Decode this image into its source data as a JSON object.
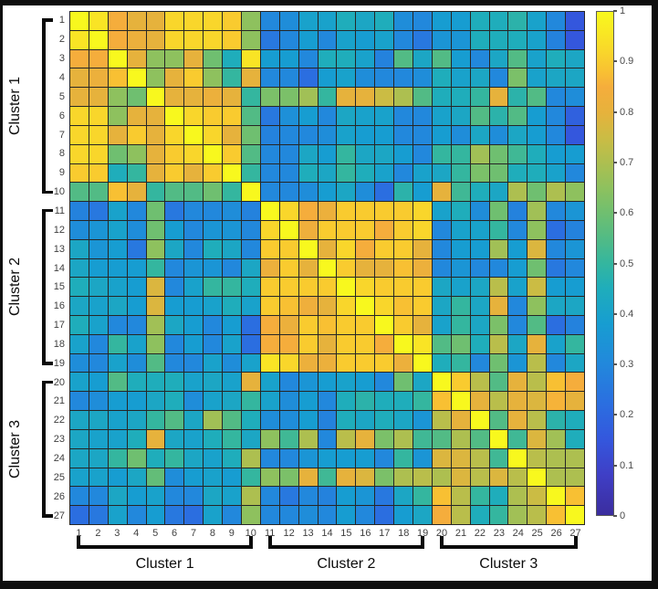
{
  "chart_data": {
    "type": "heatmap",
    "title": "",
    "rows": 27,
    "cols": 27,
    "row_labels": [
      "1",
      "2",
      "3",
      "4",
      "5",
      "6",
      "7",
      "8",
      "9",
      "10",
      "11",
      "12",
      "13",
      "14",
      "15",
      "16",
      "17",
      "18",
      "19",
      "20",
      "21",
      "22",
      "23",
      "24",
      "25",
      "26",
      "27"
    ],
    "col_labels": [
      "1",
      "2",
      "3",
      "4",
      "5",
      "6",
      "7",
      "8",
      "9",
      "10",
      "11",
      "12",
      "13",
      "14",
      "15",
      "16",
      "17",
      "18",
      "19",
      "20",
      "21",
      "22",
      "23",
      "24",
      "25",
      "26",
      "27"
    ],
    "row_clusters": [
      {
        "label": "Cluster 1",
        "start": 1,
        "end": 10
      },
      {
        "label": "Cluster 2",
        "start": 11,
        "end": 19
      },
      {
        "label": "Cluster 3",
        "start": 20,
        "end": 27
      }
    ],
    "col_clusters": [
      {
        "label": "Cluster 1",
        "start": 1,
        "end": 10
      },
      {
        "label": "Cluster 2",
        "start": 11,
        "end": 19
      },
      {
        "label": "Cluster 3",
        "start": 20,
        "end": 27
      }
    ],
    "value_range": [
      0,
      1
    ],
    "colorbar_ticks": [
      "1",
      "0.9",
      "0.8",
      "0.7",
      "0.6",
      "0.5",
      "0.4",
      "0.3",
      "0.2",
      "0.1",
      "0"
    ],
    "colormap": {
      "name": "parula-like",
      "stops": [
        [
          0.0,
          "#3b2d9e"
        ],
        [
          0.08,
          "#3f3fc6"
        ],
        [
          0.15,
          "#3457dd"
        ],
        [
          0.22,
          "#2b6ee0"
        ],
        [
          0.3,
          "#2288dc"
        ],
        [
          0.38,
          "#179dd1"
        ],
        [
          0.45,
          "#1fadbb"
        ],
        [
          0.5,
          "#34b69f"
        ],
        [
          0.55,
          "#52bb85"
        ],
        [
          0.6,
          "#6fbf70"
        ],
        [
          0.65,
          "#8ec15e"
        ],
        [
          0.7,
          "#adbf50"
        ],
        [
          0.75,
          "#cbbc44"
        ],
        [
          0.8,
          "#e6b23c"
        ],
        [
          0.85,
          "#f5ad3c"
        ],
        [
          0.88,
          "#f8c033"
        ],
        [
          0.92,
          "#f9d62b"
        ],
        [
          0.96,
          "#f9e823"
        ],
        [
          1.0,
          "#f8f81e"
        ]
      ]
    },
    "colors": {
      "gridline": "#262626",
      "tick_label": "#3f3f3f",
      "cluster_label": "#0b0b0b",
      "background": "#ffffff",
      "frame": "#0e0e0e",
      "colorbar_border": "#5a5a5a"
    },
    "values": [
      [
        1.0,
        0.95,
        0.85,
        0.8,
        0.8,
        0.92,
        0.92,
        0.92,
        0.9,
        0.65,
        0.3,
        0.32,
        0.4,
        0.4,
        0.45,
        0.42,
        0.45,
        0.32,
        0.3,
        0.38,
        0.38,
        0.45,
        0.45,
        0.48,
        0.4,
        0.3,
        0.15
      ],
      [
        0.95,
        1.0,
        0.85,
        0.82,
        0.8,
        0.92,
        0.92,
        0.92,
        0.9,
        0.65,
        0.25,
        0.3,
        0.38,
        0.3,
        0.4,
        0.38,
        0.4,
        0.3,
        0.25,
        0.35,
        0.35,
        0.45,
        0.45,
        0.45,
        0.4,
        0.28,
        0.15
      ],
      [
        0.85,
        0.85,
        1.0,
        0.8,
        0.65,
        0.65,
        0.8,
        0.6,
        0.45,
        0.95,
        0.38,
        0.38,
        0.3,
        0.45,
        0.45,
        0.4,
        0.28,
        0.55,
        0.42,
        0.55,
        0.38,
        0.3,
        0.42,
        0.55,
        0.4,
        0.45,
        0.42
      ],
      [
        0.8,
        0.82,
        0.88,
        1.0,
        0.65,
        0.8,
        0.9,
        0.65,
        0.5,
        0.8,
        0.3,
        0.3,
        0.22,
        0.38,
        0.4,
        0.32,
        0.3,
        0.3,
        0.32,
        0.45,
        0.4,
        0.42,
        0.3,
        0.62,
        0.4,
        0.42,
        0.42
      ],
      [
        0.8,
        0.8,
        0.65,
        0.6,
        1.0,
        0.8,
        0.8,
        0.82,
        0.8,
        0.5,
        0.62,
        0.62,
        0.68,
        0.5,
        0.8,
        0.8,
        0.75,
        0.7,
        0.55,
        0.45,
        0.45,
        0.5,
        0.8,
        0.48,
        0.55,
        0.3,
        0.32
      ],
      [
        0.92,
        0.92,
        0.65,
        0.8,
        0.8,
        1.0,
        0.92,
        0.9,
        0.9,
        0.55,
        0.25,
        0.33,
        0.38,
        0.3,
        0.42,
        0.4,
        0.4,
        0.3,
        0.3,
        0.4,
        0.42,
        0.55,
        0.48,
        0.55,
        0.38,
        0.3,
        0.18
      ],
      [
        0.92,
        0.92,
        0.8,
        0.9,
        0.8,
        0.92,
        1.0,
        0.92,
        0.8,
        0.6,
        0.28,
        0.3,
        0.3,
        0.32,
        0.4,
        0.38,
        0.38,
        0.3,
        0.3,
        0.38,
        0.32,
        0.42,
        0.32,
        0.42,
        0.38,
        0.3,
        0.15
      ],
      [
        0.92,
        0.92,
        0.6,
        0.65,
        0.8,
        0.9,
        0.92,
        1.0,
        0.9,
        0.55,
        0.3,
        0.3,
        0.42,
        0.38,
        0.5,
        0.42,
        0.42,
        0.38,
        0.3,
        0.5,
        0.5,
        0.68,
        0.6,
        0.52,
        0.45,
        0.38,
        0.38
      ],
      [
        0.9,
        0.9,
        0.45,
        0.5,
        0.8,
        0.9,
        0.8,
        0.9,
        1.0,
        0.5,
        0.3,
        0.3,
        0.45,
        0.42,
        0.5,
        0.45,
        0.4,
        0.3,
        0.4,
        0.42,
        0.5,
        0.62,
        0.6,
        0.45,
        0.45,
        0.4,
        0.3
      ],
      [
        0.55,
        0.55,
        0.88,
        0.8,
        0.5,
        0.55,
        0.55,
        0.6,
        0.5,
        1.0,
        0.3,
        0.3,
        0.32,
        0.38,
        0.42,
        0.32,
        0.22,
        0.48,
        0.38,
        0.8,
        0.52,
        0.45,
        0.42,
        0.7,
        0.6,
        0.7,
        0.65
      ],
      [
        0.28,
        0.25,
        0.4,
        0.3,
        0.6,
        0.25,
        0.3,
        0.3,
        0.32,
        0.28,
        1.0,
        0.92,
        0.85,
        0.82,
        0.9,
        0.9,
        0.9,
        0.9,
        0.92,
        0.4,
        0.45,
        0.32,
        0.6,
        0.28,
        0.68,
        0.3,
        0.35
      ],
      [
        0.32,
        0.35,
        0.4,
        0.32,
        0.6,
        0.38,
        0.3,
        0.35,
        0.35,
        0.3,
        0.92,
        1.0,
        0.83,
        0.9,
        0.9,
        0.9,
        0.85,
        0.9,
        0.92,
        0.3,
        0.4,
        0.4,
        0.5,
        0.3,
        0.65,
        0.22,
        0.28
      ],
      [
        0.42,
        0.35,
        0.38,
        0.25,
        0.65,
        0.42,
        0.3,
        0.45,
        0.42,
        0.3,
        0.9,
        0.9,
        1.0,
        0.8,
        0.92,
        0.85,
        0.9,
        0.9,
        0.8,
        0.3,
        0.38,
        0.38,
        0.68,
        0.38,
        0.78,
        0.3,
        0.35
      ],
      [
        0.42,
        0.38,
        0.38,
        0.38,
        0.5,
        0.3,
        0.35,
        0.35,
        0.3,
        0.42,
        0.82,
        0.9,
        0.8,
        1.0,
        0.9,
        0.8,
        0.8,
        0.88,
        0.82,
        0.3,
        0.35,
        0.3,
        0.3,
        0.38,
        0.6,
        0.25,
        0.3
      ],
      [
        0.45,
        0.42,
        0.4,
        0.38,
        0.78,
        0.3,
        0.4,
        0.5,
        0.5,
        0.45,
        0.9,
        0.9,
        0.9,
        0.9,
        1.0,
        0.92,
        0.9,
        0.9,
        0.9,
        0.42,
        0.4,
        0.42,
        0.72,
        0.4,
        0.75,
        0.38,
        0.38
      ],
      [
        0.42,
        0.4,
        0.42,
        0.38,
        0.78,
        0.38,
        0.38,
        0.4,
        0.45,
        0.4,
        0.9,
        0.88,
        0.83,
        0.8,
        0.92,
        1.0,
        0.92,
        0.88,
        0.9,
        0.42,
        0.5,
        0.42,
        0.8,
        0.3,
        0.65,
        0.42,
        0.42
      ],
      [
        0.45,
        0.4,
        0.3,
        0.3,
        0.68,
        0.42,
        0.38,
        0.3,
        0.38,
        0.22,
        0.85,
        0.82,
        0.9,
        0.88,
        0.9,
        0.9,
        1.0,
        0.9,
        0.8,
        0.4,
        0.5,
        0.42,
        0.62,
        0.3,
        0.55,
        0.22,
        0.28
      ],
      [
        0.4,
        0.3,
        0.5,
        0.4,
        0.65,
        0.3,
        0.38,
        0.3,
        0.4,
        0.22,
        0.85,
        0.85,
        0.9,
        0.8,
        0.9,
        0.9,
        0.85,
        1.0,
        0.95,
        0.55,
        0.6,
        0.45,
        0.72,
        0.42,
        0.8,
        0.4,
        0.5
      ],
      [
        0.32,
        0.3,
        0.4,
        0.32,
        0.55,
        0.3,
        0.3,
        0.4,
        0.32,
        0.4,
        0.95,
        0.92,
        0.82,
        0.82,
        0.9,
        0.9,
        0.9,
        0.82,
        1.0,
        0.45,
        0.5,
        0.3,
        0.6,
        0.35,
        0.72,
        0.3,
        0.42
      ],
      [
        0.4,
        0.38,
        0.55,
        0.45,
        0.45,
        0.45,
        0.4,
        0.42,
        0.4,
        0.8,
        0.4,
        0.3,
        0.35,
        0.38,
        0.4,
        0.38,
        0.3,
        0.6,
        0.42,
        1.0,
        0.9,
        0.72,
        0.55,
        0.8,
        0.72,
        0.88,
        0.85
      ],
      [
        0.3,
        0.32,
        0.38,
        0.38,
        0.42,
        0.45,
        0.32,
        0.4,
        0.42,
        0.5,
        0.4,
        0.32,
        0.38,
        0.3,
        0.45,
        0.48,
        0.45,
        0.45,
        0.5,
        0.88,
        1.0,
        0.8,
        0.72,
        0.8,
        0.78,
        0.86,
        0.8
      ],
      [
        0.42,
        0.42,
        0.4,
        0.42,
        0.5,
        0.55,
        0.42,
        0.68,
        0.55,
        0.45,
        0.32,
        0.32,
        0.38,
        0.28,
        0.45,
        0.42,
        0.45,
        0.42,
        0.35,
        0.72,
        0.8,
        1.0,
        0.55,
        0.8,
        0.72,
        0.48,
        0.45
      ],
      [
        0.42,
        0.4,
        0.4,
        0.45,
        0.8,
        0.42,
        0.4,
        0.45,
        0.5,
        0.42,
        0.65,
        0.52,
        0.7,
        0.3,
        0.72,
        0.8,
        0.62,
        0.7,
        0.52,
        0.55,
        0.7,
        0.55,
        1.0,
        0.52,
        0.78,
        0.68,
        0.45
      ],
      [
        0.42,
        0.42,
        0.5,
        0.6,
        0.45,
        0.5,
        0.42,
        0.4,
        0.45,
        0.7,
        0.3,
        0.3,
        0.35,
        0.38,
        0.38,
        0.38,
        0.3,
        0.5,
        0.35,
        0.78,
        0.78,
        0.72,
        0.52,
        1.0,
        0.72,
        0.7,
        0.7
      ],
      [
        0.4,
        0.4,
        0.38,
        0.42,
        0.58,
        0.32,
        0.38,
        0.4,
        0.38,
        0.5,
        0.65,
        0.62,
        0.8,
        0.52,
        0.8,
        0.78,
        0.62,
        0.7,
        0.72,
        0.7,
        0.78,
        0.72,
        0.78,
        0.72,
        1.0,
        0.7,
        0.7
      ],
      [
        0.3,
        0.3,
        0.42,
        0.38,
        0.4,
        0.3,
        0.3,
        0.42,
        0.4,
        0.7,
        0.3,
        0.25,
        0.3,
        0.28,
        0.38,
        0.35,
        0.25,
        0.42,
        0.5,
        0.88,
        0.72,
        0.5,
        0.45,
        0.7,
        0.75,
        1.0,
        0.88
      ],
      [
        0.22,
        0.25,
        0.4,
        0.3,
        0.38,
        0.25,
        0.22,
        0.4,
        0.3,
        0.65,
        0.3,
        0.3,
        0.32,
        0.3,
        0.38,
        0.3,
        0.22,
        0.38,
        0.42,
        0.85,
        0.72,
        0.45,
        0.5,
        0.68,
        0.72,
        0.88,
        1.0
      ]
    ]
  }
}
